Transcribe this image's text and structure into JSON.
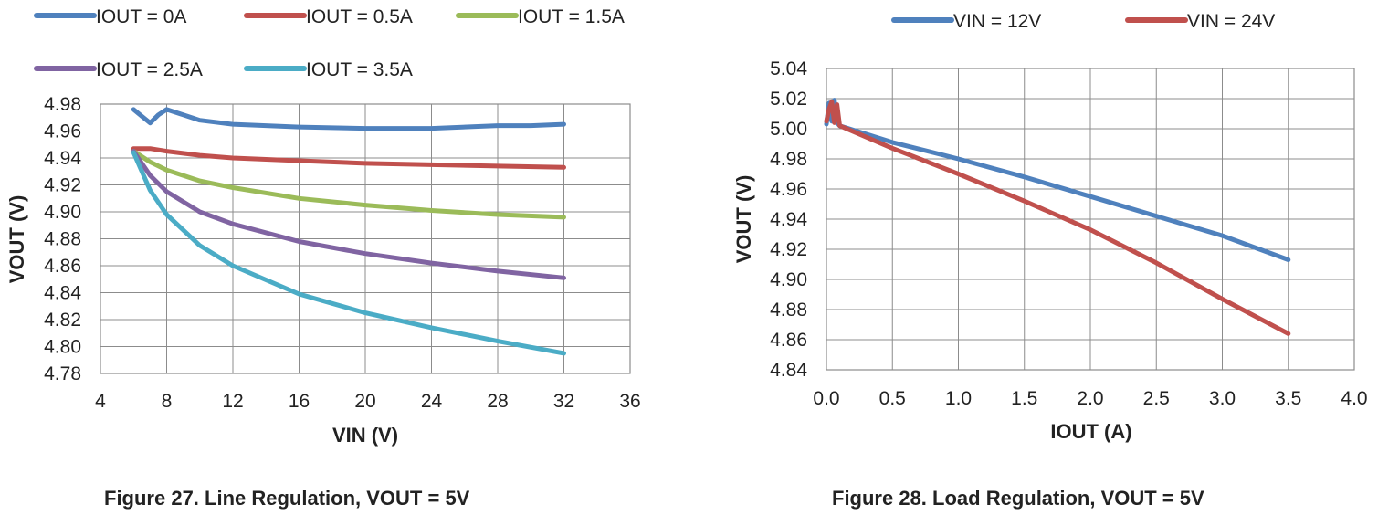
{
  "chart_data": [
    {
      "type": "line",
      "figure_caption": "Figure 27. Line Regulation, VOUT = 5V",
      "title": "",
      "xlabel": "VIN (V)",
      "ylabel": "VOUT (V)",
      "xlim": [
        4,
        36
      ],
      "ylim": [
        4.78,
        4.98
      ],
      "xticks": [
        "4",
        "8",
        "12",
        "16",
        "20",
        "24",
        "28",
        "32",
        "36"
      ],
      "yticks": [
        "4.78",
        "4.80",
        "4.82",
        "4.84",
        "4.86",
        "4.88",
        "4.90",
        "4.92",
        "4.94",
        "4.96",
        "4.98"
      ],
      "grid": true,
      "legend_placement": "top",
      "series": [
        {
          "name": "IOUT = 0A",
          "color": "#4f81bd",
          "x": [
            6,
            6.5,
            7,
            7.5,
            8,
            9,
            10,
            12,
            16,
            20,
            24,
            28,
            30,
            32
          ],
          "y": [
            4.976,
            4.971,
            4.966,
            4.972,
            4.976,
            4.972,
            4.968,
            4.965,
            4.963,
            4.962,
            4.962,
            4.964,
            4.964,
            4.965
          ]
        },
        {
          "name": "IOUT = 0.5A",
          "color": "#c0504d",
          "x": [
            6,
            7,
            8,
            10,
            12,
            16,
            20,
            24,
            28,
            32
          ],
          "y": [
            4.947,
            4.947,
            4.945,
            4.942,
            4.94,
            4.938,
            4.936,
            4.935,
            4.934,
            4.933
          ]
        },
        {
          "name": "IOUT = 1.5A",
          "color": "#9bbb59",
          "x": [
            6,
            7,
            8,
            10,
            12,
            16,
            20,
            24,
            28,
            32
          ],
          "y": [
            4.945,
            4.937,
            4.931,
            4.923,
            4.918,
            4.91,
            4.905,
            4.901,
            4.898,
            4.896
          ]
        },
        {
          "name": "IOUT = 2.5A",
          "color": "#8064a2",
          "x": [
            6,
            7,
            8,
            10,
            12,
            16,
            20,
            24,
            28,
            32
          ],
          "y": [
            4.945,
            4.927,
            4.915,
            4.9,
            4.891,
            4.878,
            4.869,
            4.862,
            4.856,
            4.851
          ]
        },
        {
          "name": "IOUT = 3.5A",
          "color": "#4bacc6",
          "x": [
            6,
            7,
            8,
            10,
            12,
            16,
            20,
            24,
            28,
            32
          ],
          "y": [
            4.944,
            4.916,
            4.898,
            4.875,
            4.86,
            4.839,
            4.825,
            4.814,
            4.804,
            4.795
          ]
        }
      ]
    },
    {
      "type": "line",
      "figure_caption": "Figure 28. Load Regulation, VOUT = 5V",
      "title": "",
      "xlabel": "IOUT (A)",
      "ylabel": "VOUT (V)",
      "xlim": [
        0,
        4
      ],
      "ylim": [
        4.84,
        5.04
      ],
      "xticks": [
        "0.0",
        "0.5",
        "1.0",
        "1.5",
        "2.0",
        "2.5",
        "3.0",
        "3.5",
        "4.0"
      ],
      "yticks": [
        "4.84",
        "4.86",
        "4.88",
        "4.90",
        "4.92",
        "4.94",
        "4.96",
        "4.98",
        "5.00",
        "5.02",
        "5.04"
      ],
      "grid": true,
      "legend_placement": "top",
      "series": [
        {
          "name": "VIN = 12V",
          "color": "#4f81bd",
          "x": [
            0,
            0.02,
            0.04,
            0.06,
            0.08,
            0.1,
            0.5,
            1.0,
            1.5,
            2.0,
            2.5,
            3.0,
            3.5
          ],
          "y": [
            5.003,
            5.017,
            5.005,
            5.019,
            5.004,
            5.002,
            4.991,
            4.98,
            4.968,
            4.955,
            4.942,
            4.929,
            4.913
          ]
        },
        {
          "name": "VIN = 24V",
          "color": "#c0504d",
          "x": [
            0,
            0.02,
            0.04,
            0.06,
            0.08,
            0.1,
            0.5,
            1.0,
            1.5,
            2.0,
            2.5,
            3.0,
            3.5
          ],
          "y": [
            5.005,
            5.013,
            5.018,
            5.004,
            5.016,
            5.002,
            4.987,
            4.97,
            4.952,
            4.933,
            4.911,
            4.887,
            4.864
          ]
        }
      ]
    }
  ]
}
